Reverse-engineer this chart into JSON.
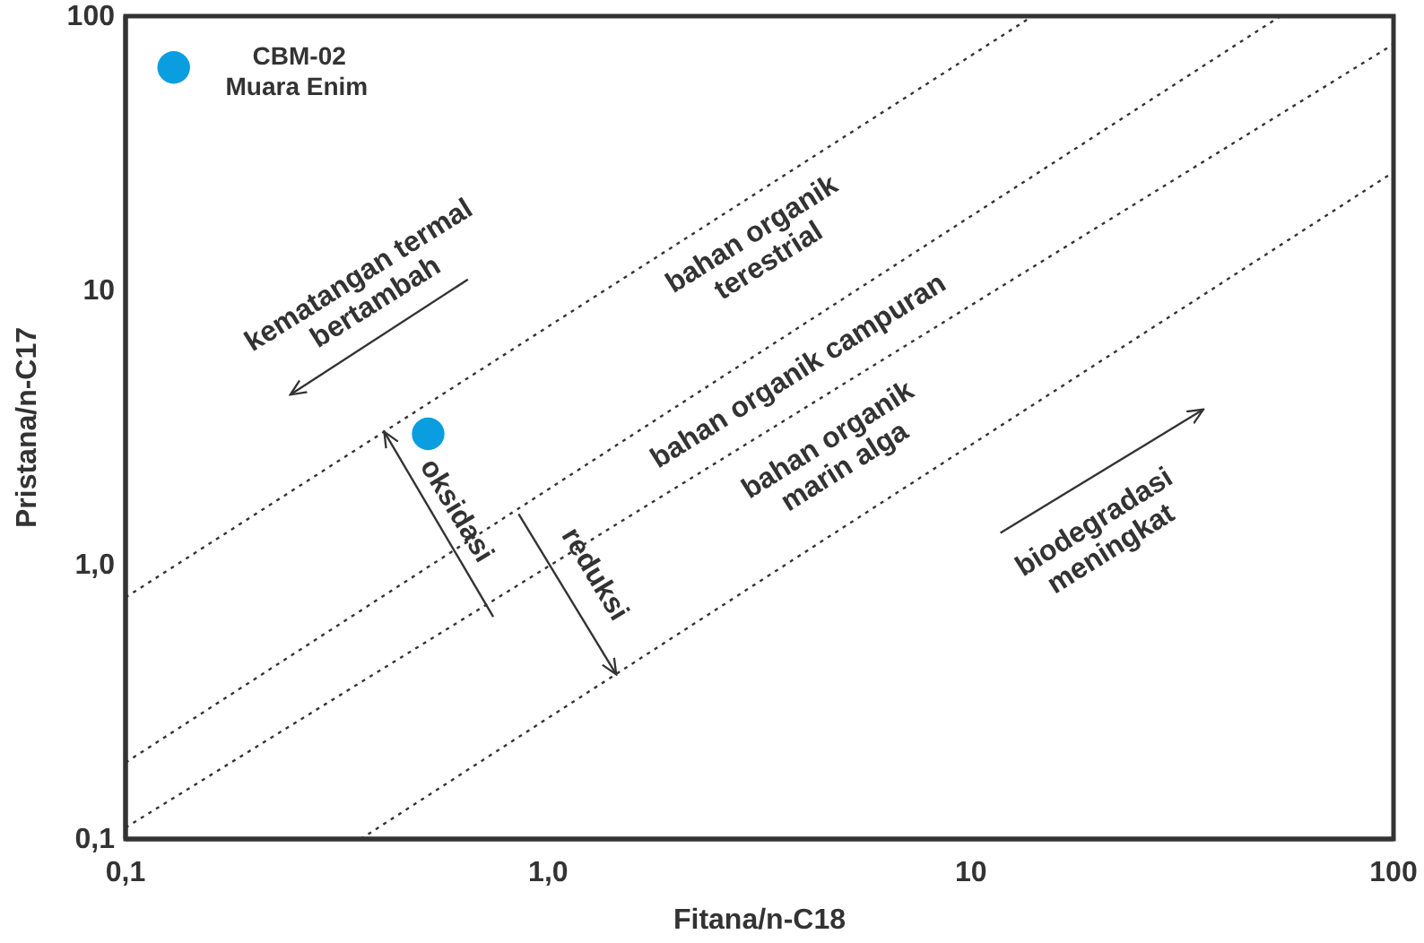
{
  "chart_data": {
    "type": "scatter",
    "xlabel": "Fitana/n-C18",
    "ylabel": "Pristana/n-C17",
    "log": "xy",
    "grid": false,
    "xlim": [
      0.1,
      100
    ],
    "ylim": [
      0.1,
      100
    ],
    "xticks": [
      {
        "value": 0.1,
        "label": "0,1"
      },
      {
        "value": 1,
        "label": "1,0"
      },
      10,
      100
    ],
    "yticks": [
      {
        "value": 0.1,
        "label": "0,1"
      },
      {
        "value": 1,
        "label": "1,0"
      },
      10,
      100
    ],
    "series": [
      {
        "color": "#0a9de0",
        "marker": "circle",
        "x": [
          0.13,
          0.52
        ],
        "values": [
          65,
          3.0
        ]
      },
      {
        "type": "line",
        "line_style": "dotted",
        "color": "#333333",
        "x": [
          0.1,
          14
        ],
        "values": [
          0.76,
          100
        ]
      },
      {
        "type": "line",
        "line_style": "dotted",
        "color": "#333333",
        "x": [
          0.1,
          54
        ],
        "values": [
          0.19,
          100
        ]
      },
      {
        "type": "line",
        "line_style": "dotted",
        "color": "#333333",
        "x": [
          0.1,
          100
        ],
        "values": [
          0.11,
          79
        ]
      },
      {
        "type": "line",
        "line_style": "dotted",
        "color": "#333333",
        "x": [
          0.36,
          100
        ],
        "values": [
          0.1,
          27
        ]
      }
    ],
    "annotations": [
      "CBM-02",
      "Muara Enim",
      "kematangan termal\nbertambah",
      "bahan organik\nterestrial",
      "bahan organik campuran",
      "bahan organik\nmarin alga",
      "biodegradasi\nmeningkat",
      "oksidasi",
      {
        "text": "reduksi",
        "x": 1.43,
        "y": 0.4
      }
    ]
  }
}
